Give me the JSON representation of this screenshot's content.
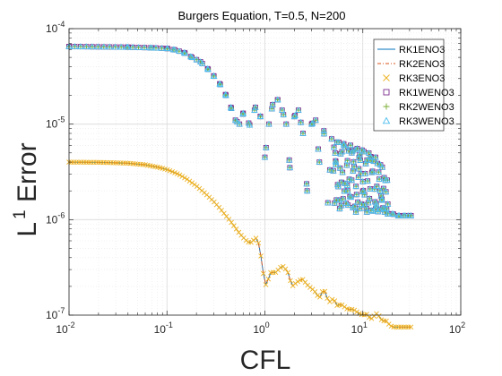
{
  "chart_data": {
    "type": "scatter",
    "title": "Burgers Equation, T=0.5, N=200",
    "xlabel": "CFL",
    "ylabel": "L 1 Error",
    "ylabel_main": "L",
    "ylabel_sup": "1",
    "ylabel_rest": " Error",
    "x_scale": "log",
    "y_scale": "log",
    "xlim": [
      0.01,
      100
    ],
    "ylim": [
      1e-07,
      0.0001
    ],
    "grid": true,
    "minor_grid": true,
    "legend_position": "top-right",
    "x_ticks": [
      {
        "value": 0.01,
        "base": "10",
        "exp": "-2"
      },
      {
        "value": 0.1,
        "base": "10",
        "exp": "-1"
      },
      {
        "value": 1,
        "base": "10",
        "exp": "0"
      },
      {
        "value": 10,
        "base": "10",
        "exp": "1"
      },
      {
        "value": 100,
        "base": "10",
        "exp": "2"
      }
    ],
    "y_ticks": [
      {
        "value": 1e-07,
        "base": "10",
        "exp": "-7"
      },
      {
        "value": 1e-06,
        "base": "10",
        "exp": "-6"
      },
      {
        "value": 1e-05,
        "base": "10",
        "exp": "-5"
      },
      {
        "value": 0.0001,
        "base": "10",
        "exp": "-4"
      }
    ],
    "series": [
      {
        "name": "RK1ENO3",
        "color": "#0072BD",
        "line": "solid",
        "marker": "none",
        "group": "eno"
      },
      {
        "name": "RK2ENO3",
        "color": "#D95319",
        "line": "dashdot",
        "marker": "none",
        "group": "eno"
      },
      {
        "name": "RK3ENO3",
        "color": "#EDB120",
        "line": "none",
        "marker": "x",
        "group": "eno"
      },
      {
        "name": "RK1WENO3",
        "color": "#7E2F8E",
        "line": "none",
        "marker": "square",
        "group": "weno"
      },
      {
        "name": "RK2WENO3",
        "color": "#77AC30",
        "line": "none",
        "marker": "plus",
        "group": "weno"
      },
      {
        "name": "RK3WENO3",
        "color": "#4DBEEE",
        "line": "none",
        "marker": "triangle",
        "group": "weno"
      }
    ],
    "eno_curve": {
      "x": [
        0.01,
        0.02,
        0.04,
        0.06,
        0.08,
        0.1,
        0.13,
        0.16,
        0.2,
        0.25,
        0.3,
        0.35,
        0.4,
        0.45,
        0.5,
        0.55,
        0.6,
        0.65,
        0.7,
        0.75,
        0.8,
        0.85,
        0.9,
        0.95,
        1.0,
        1.05,
        1.15,
        1.3,
        1.5,
        1.7,
        1.9,
        2.1,
        2.4,
        2.8,
        3.2,
        3.6,
        4.0,
        4.5,
        5.0,
        5.5,
        6.0,
        7.0,
        8.0,
        9.0,
        10.0,
        11.0,
        12.0,
        14.0,
        16.0,
        17.0,
        18.0,
        20.0,
        24.0,
        28.0,
        31.0
      ],
      "y": [
        4e-06,
        3.98e-06,
        3.9e-06,
        3.75e-06,
        3.55e-06,
        3.35e-06,
        3e-06,
        2.65e-06,
        2.25e-06,
        1.85e-06,
        1.55e-06,
        1.3e-06,
        1.1e-06,
        9.5e-07,
        8.2e-07,
        7.2e-07,
        6.5e-07,
        6e-07,
        5.7e-07,
        5.9e-07,
        6.5e-07,
        6e-07,
        4.5e-07,
        3.1e-07,
        2e-07,
        2.2e-07,
        2.8e-07,
        2.8e-07,
        3.3e-07,
        2.9e-07,
        2e-07,
        2.2e-07,
        2.4e-07,
        2e-07,
        1.8e-07,
        1.5e-07,
        1.9e-07,
        1.35e-07,
        1.5e-07,
        1.25e-07,
        1.3e-07,
        1.15e-07,
        1.15e-07,
        1.05e-07,
        1e-07,
        1.02e-07,
        9e-08,
        1.05e-07,
        8.5e-08,
        9e-08,
        8.2e-08,
        7.5e-08,
        7.5e-08,
        7.5e-08,
        7.5e-08
      ]
    },
    "weno_curve": {
      "x": [
        0.01,
        0.04,
        0.07,
        0.1,
        0.12,
        0.15,
        0.18,
        0.22,
        0.26,
        0.3,
        0.35,
        0.4,
        0.45,
        0.5,
        0.55,
        0.6,
        0.7,
        0.8,
        0.9,
        1.0,
        1.1,
        1.2,
        1.35,
        1.5,
        1.65,
        1.8,
        2.0,
        2.2,
        2.45,
        2.7,
        3.0,
        3.3,
        3.6,
        4.0,
        4.4,
        4.8,
        5.3,
        5.8,
        6.4,
        7.0,
        7.7,
        8.5,
        9.3,
        10.0,
        11.0,
        12.0,
        13.5,
        15.0,
        16.5,
        18.0,
        20.0,
        23.0,
        26.0,
        29.0,
        31.0
      ],
      "y": [
        6.5e-05,
        6.4e-05,
        6.3e-05,
        6.2e-05,
        6e-05,
        5.6e-05,
        5e-05,
        4.5e-05,
        3.8e-05,
        3.2e-05,
        2.6e-05,
        2e-05,
        1.5e-05,
        1.1e-05,
        1e-05,
        1.3e-05,
        9.8e-06,
        1.5e-05,
        1.2e-05,
        4.5e-06,
        1e-05,
        1.6e-05,
        1.8e-05,
        1.4e-05,
        1e-05,
        3.5e-06,
        1.2e-05,
        1.4e-05,
        8e-06,
        2e-06,
        1e-05,
        1.1e-05,
        4e-06,
        8.5e-06,
        1.5e-06,
        7e-06,
        4e-06,
        1.3e-06,
        6e-06,
        2e-06,
        5e-06,
        1.2e-06,
        4.8e-06,
        2.5e-06,
        1.2e-06,
        4.5e-06,
        1.3e-06,
        2e-06,
        1.3e-06,
        1.15e-06,
        1.15e-06,
        1.1e-06,
        1.1e-06,
        1.1e-06,
        1.1e-06
      ]
    },
    "weno_band": {
      "x": [
        5.0,
        6.0,
        7.0,
        8.0,
        9.0,
        10.0,
        11.0,
        12.0,
        13.0,
        14.0,
        15.0,
        16.0,
        17.0,
        18.0
      ],
      "y_low": [
        1.5e-06,
        1.4e-06,
        1.4e-06,
        1.3e-06,
        1.3e-06,
        1.3e-06,
        1.3e-06,
        1.2e-06,
        1.2e-06,
        1.2e-06,
        1.2e-06,
        1.2e-06,
        1.2e-06,
        1.2e-06
      ],
      "y_high": [
        7e-06,
        6.5e-06,
        6e-06,
        6e-06,
        5.5e-06,
        5.5e-06,
        5e-06,
        5e-06,
        4.5e-06,
        4.5e-06,
        4e-06,
        3.5e-06,
        3e-06,
        2.5e-06
      ]
    }
  }
}
